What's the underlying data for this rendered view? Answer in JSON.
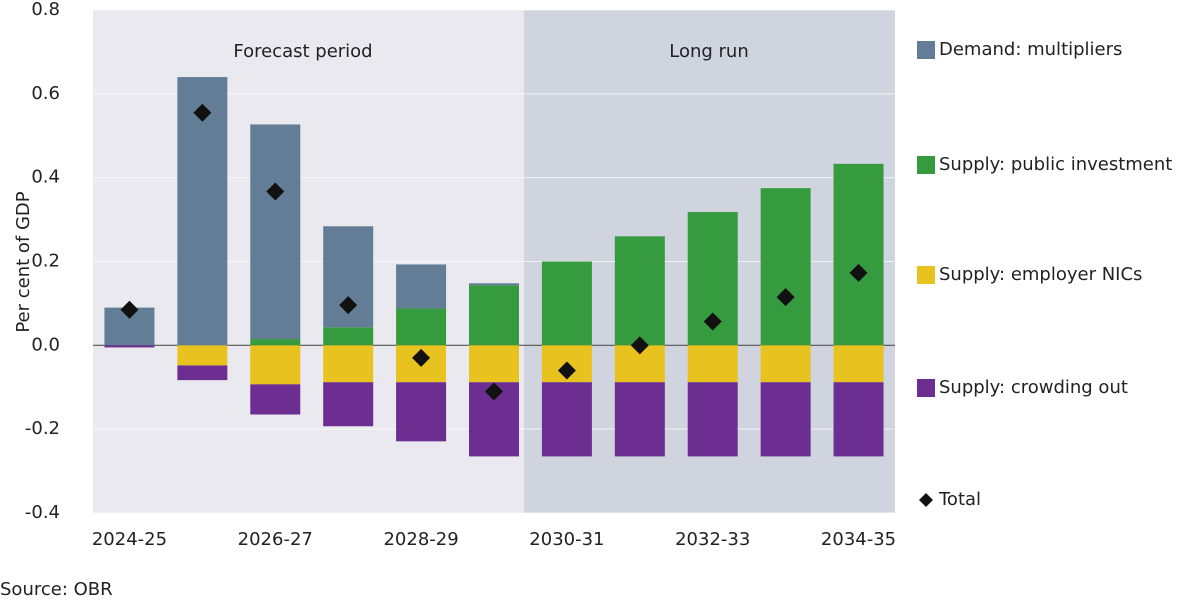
{
  "chart_data": {
    "type": "bar",
    "stacked": true,
    "y_label": "Per cent of GDP",
    "source": "Source: OBR",
    "annotations": [
      "Forecast period",
      "Long run"
    ],
    "categories": [
      "2024-25",
      null,
      "2026-27",
      null,
      "2028-29",
      null,
      "2030-31",
      null,
      "2032-33",
      null,
      "2034-35"
    ],
    "series": [
      {
        "name": "Demand: multipliers",
        "color": "#647d96",
        "values": [
          0.09,
          0.64,
          0.512,
          0.241,
          0.105,
          0.005,
          0,
          0,
          0,
          0,
          0
        ]
      },
      {
        "name": "Supply: public investment",
        "color": "#369b3e",
        "values": [
          0,
          0,
          0.015,
          0.043,
          0.088,
          0.143,
          0.2,
          0.26,
          0.318,
          0.375,
          0.433
        ]
      },
      {
        "name": "Supply: employer NICs",
        "color": "#e8c21e",
        "values": [
          0,
          -0.048,
          -0.093,
          -0.088,
          -0.088,
          -0.088,
          -0.088,
          -0.088,
          -0.088,
          -0.088,
          -0.088
        ]
      },
      {
        "name": "Supply: crowding out",
        "color": "#6d2e91",
        "values": [
          -0.005,
          -0.035,
          -0.072,
          -0.105,
          -0.141,
          -0.177,
          -0.177,
          -0.177,
          -0.177,
          -0.177,
          -0.177
        ]
      },
      {
        "name": "Total",
        "type": "scatter",
        "marker": "diamond",
        "color": "#111111",
        "values": [
          0.085,
          0.555,
          0.367,
          0.096,
          -0.03,
          -0.11,
          -0.06,
          0,
          0.057,
          0.115,
          0.173
        ]
      }
    ],
    "ylim": [
      -0.4,
      0.8
    ],
    "yticks": [
      -0.4,
      -0.2,
      {
        "value": 0,
        "label": "0.0"
      },
      0.2,
      0.4,
      0.6,
      0.8
    ],
    "grid": true
  }
}
